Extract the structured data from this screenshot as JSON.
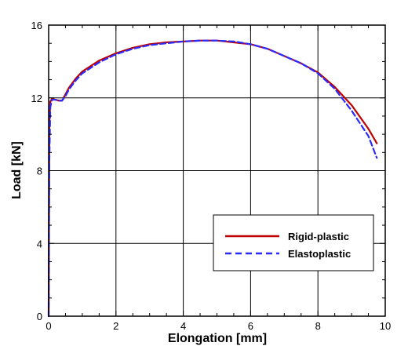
{
  "chart_data": {
    "type": "line",
    "title": "",
    "xlabel": "Elongation [mm]",
    "ylabel": "Load [kN]",
    "xlim": [
      0,
      10
    ],
    "ylim": [
      0,
      16
    ],
    "xticks": [
      0,
      2,
      4,
      6,
      8,
      10
    ],
    "yticks": [
      0,
      4,
      8,
      12,
      16
    ],
    "grid": true,
    "legend_position": "bottom-right",
    "series": [
      {
        "name": "Rigid-plastic",
        "color": "#c00000",
        "style": "solid",
        "x": [
          0,
          0.02,
          0.05,
          0.1,
          0.2,
          0.3,
          0.4,
          0.5,
          0.6,
          0.8,
          1.0,
          1.5,
          2.0,
          2.5,
          3.0,
          3.5,
          4.0,
          4.5,
          5.0,
          5.5,
          6.0,
          6.5,
          7.0,
          7.5,
          8.0,
          8.5,
          9.0,
          9.5,
          9.75
        ],
        "y": [
          0,
          10.5,
          11.8,
          11.95,
          11.9,
          11.85,
          11.85,
          12.2,
          12.55,
          13.05,
          13.45,
          14.05,
          14.45,
          14.75,
          14.95,
          15.05,
          15.1,
          15.15,
          15.15,
          15.05,
          14.95,
          14.7,
          14.3,
          13.9,
          13.4,
          12.6,
          11.6,
          10.3,
          9.5
        ]
      },
      {
        "name": "Elastoplastic",
        "color": "#2a2aff",
        "style": "dashed",
        "x": [
          0,
          0.02,
          0.05,
          0.1,
          0.2,
          0.3,
          0.4,
          0.5,
          0.6,
          0.8,
          1.0,
          1.5,
          2.0,
          2.5,
          3.0,
          3.5,
          4.0,
          4.5,
          5.0,
          5.5,
          6.0,
          6.5,
          7.0,
          7.5,
          8.0,
          8.5,
          9.0,
          9.5,
          9.75
        ],
        "y": [
          0,
          8.5,
          11.5,
          11.9,
          11.9,
          11.85,
          11.85,
          12.1,
          12.45,
          12.95,
          13.35,
          13.95,
          14.4,
          14.7,
          14.9,
          15.0,
          15.1,
          15.15,
          15.15,
          15.1,
          14.95,
          14.7,
          14.3,
          13.9,
          13.35,
          12.5,
          11.3,
          9.9,
          8.7
        ]
      }
    ]
  }
}
